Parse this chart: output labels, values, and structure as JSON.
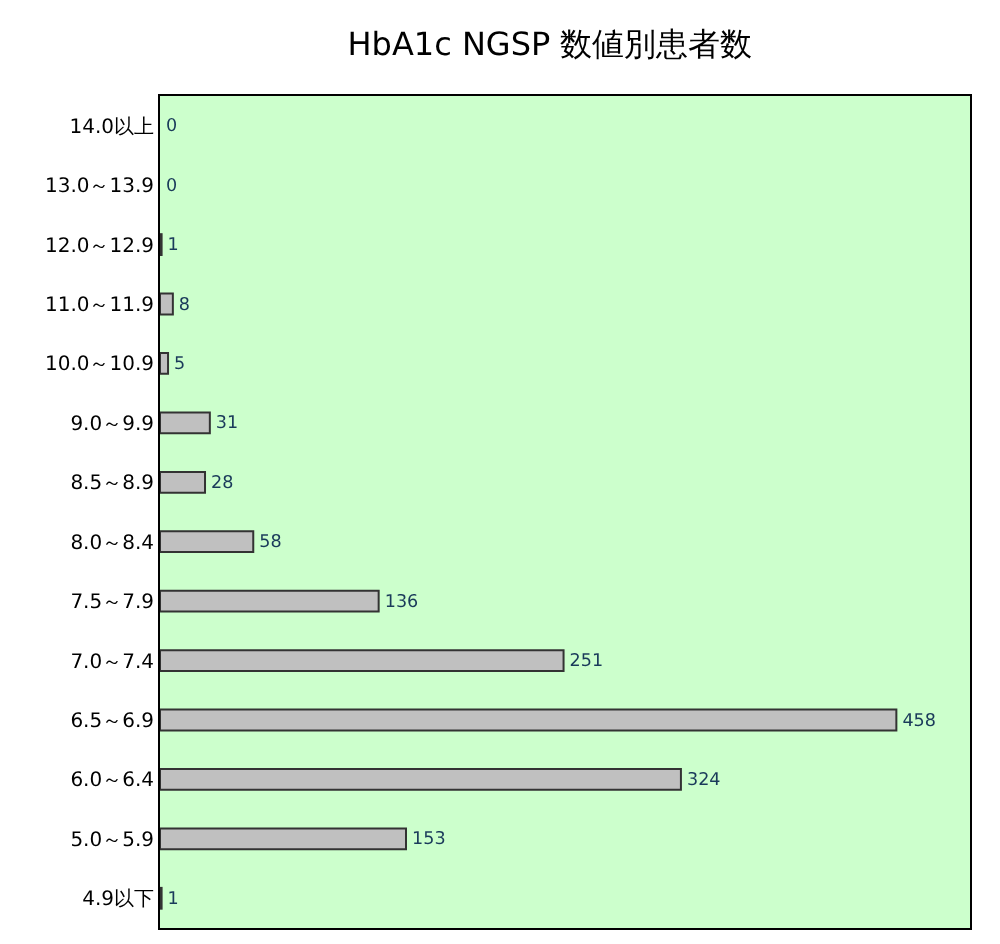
{
  "chart_data": {
    "type": "bar",
    "orientation": "horizontal",
    "title": "HbA1c NGSP 数値別患者数",
    "categories": [
      "14.0以上",
      "13.0～13.9",
      "12.0～12.9",
      "11.0～11.9",
      "10.0～10.9",
      "9.0～9.9",
      "8.5～8.9",
      "8.0～8.4",
      "7.5～7.9",
      "7.0～7.4",
      "6.5～6.9",
      "6.0～6.4",
      "5.0～5.9",
      "4.9以下"
    ],
    "values": [
      0,
      0,
      1,
      8,
      5,
      31,
      28,
      58,
      136,
      251,
      458,
      324,
      153,
      1
    ],
    "color": "#c0c0c0",
    "data_labels": true,
    "grid": false,
    "legend": false
  }
}
